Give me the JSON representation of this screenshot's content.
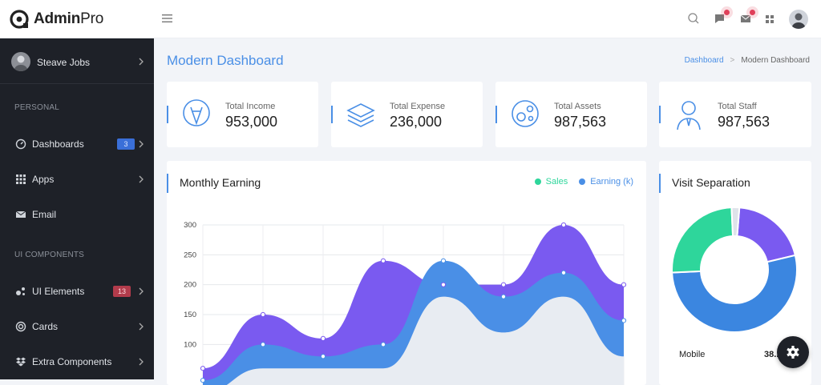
{
  "brand": {
    "name_bold": "Admin",
    "name_light": "Pro"
  },
  "topbar": {
    "icons": [
      "hamburger-icon",
      "search-icon",
      "chat-icon",
      "mail-icon",
      "apps-grid-icon"
    ]
  },
  "sidebar": {
    "user": {
      "name": "Steave Jobs"
    },
    "sections": [
      {
        "label": "PERSONAL"
      },
      {
        "label": "UI COMPONENTS"
      }
    ],
    "items": [
      {
        "label": "Dashboards",
        "icon": "dashboard-icon",
        "badge": "3"
      },
      {
        "label": "Apps",
        "icon": "apps-grid-icon"
      },
      {
        "label": "Email",
        "icon": "mail-icon"
      },
      {
        "label": "UI Elements",
        "icon": "ui-elements-icon",
        "badge": "13"
      },
      {
        "label": "Cards",
        "icon": "cards-icon"
      },
      {
        "label": "Extra Components",
        "icon": "dropbox-icon"
      }
    ]
  },
  "page": {
    "title": "Modern Dashboard",
    "breadcrumb": {
      "link": "Dashboard",
      "separator": ">",
      "current": "Modern Dashboard"
    }
  },
  "stats": [
    {
      "label": "Total Income",
      "value": "953,000",
      "icon": "pencil-badge-icon"
    },
    {
      "label": "Total Expense",
      "value": "236,000",
      "icon": "layers-icon"
    },
    {
      "label": "Total Assets",
      "value": "987,563",
      "icon": "assets-icon"
    },
    {
      "label": "Total Staff",
      "value": "987,563",
      "icon": "staff-icon"
    }
  ],
  "monthly_earning": {
    "title": "Monthly Earning",
    "legend": [
      {
        "name": "Sales",
        "color": "#2ed69b"
      },
      {
        "name": "Earning (k)",
        "color": "#4a8fe6"
      }
    ]
  },
  "visit_separation": {
    "title": "Visit Separation",
    "rows": [
      {
        "label": "Mobile",
        "value": "38..."
      }
    ]
  },
  "chart_data": [
    {
      "type": "area",
      "ylim": [
        0,
        300
      ],
      "yticks": [
        "300",
        "250",
        "200",
        "150",
        "100"
      ],
      "series": [
        {
          "color": "#7a5af0",
          "x": [
            0,
            1,
            2,
            3,
            4,
            5,
            6,
            7
          ],
          "values": [
            60,
            150,
            110,
            240,
            200,
            200,
            300,
            200
          ]
        },
        {
          "color": "#4a8fe6",
          "x": [
            0,
            1,
            2,
            3,
            4,
            5,
            6,
            7
          ],
          "values": [
            40,
            100,
            80,
            100,
            240,
            180,
            220,
            140
          ]
        },
        {
          "color": "#e8ecf2",
          "x": [
            0,
            1,
            2,
            3,
            4,
            5,
            6,
            7
          ],
          "values": [
            20,
            60,
            60,
            60,
            180,
            120,
            180,
            80
          ]
        }
      ]
    },
    {
      "type": "pie",
      "slices": [
        {
          "color": "#7a5af0",
          "value": 20
        },
        {
          "color": "#3b86e0",
          "value": 53
        },
        {
          "color": "#2ed69b",
          "value": 25
        },
        {
          "color": "#dfe3ea",
          "value": 2
        }
      ]
    }
  ],
  "fab": {
    "icon": "gear-icon"
  }
}
